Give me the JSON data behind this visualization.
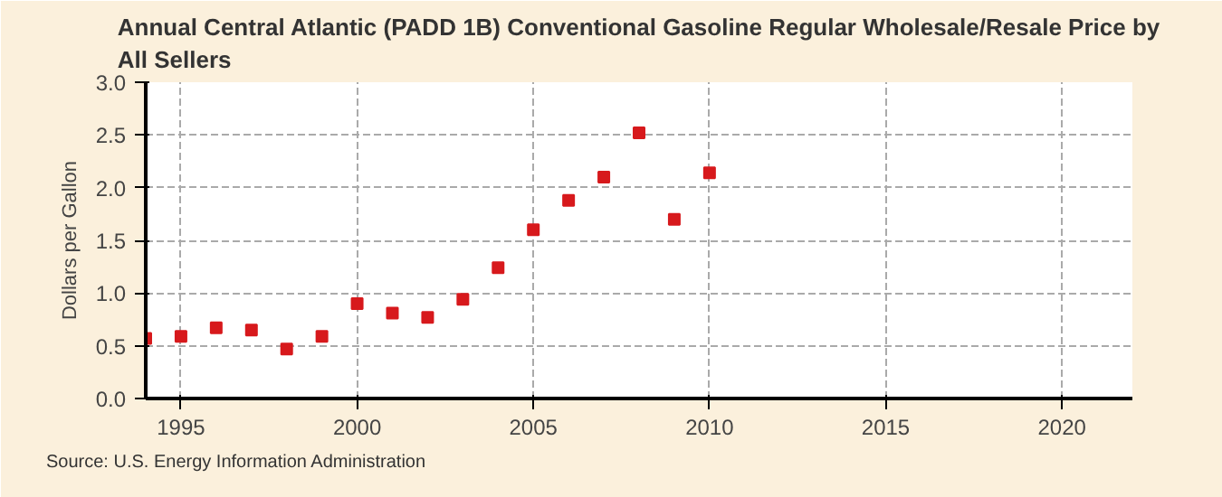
{
  "chart_data": {
    "type": "scatter",
    "title": "Annual Central Atlantic (PADD 1B) Conventional Gasoline Regular Wholesale/Resale Price by\nAll Sellers",
    "ylabel": "Dollars per Gallon",
    "x": [
      1994,
      1995,
      1996,
      1997,
      1998,
      1999,
      2000,
      2001,
      2002,
      2003,
      2004,
      2005,
      2006,
      2007,
      2008,
      2009,
      2010
    ],
    "series": [
      {
        "color": "#d7191c",
        "values": [
          0.57,
          0.59,
          0.67,
          0.65,
          0.47,
          0.59,
          0.9,
          0.81,
          0.77,
          0.94,
          1.24,
          1.6,
          1.88,
          2.1,
          2.52,
          1.7,
          2.14
        ]
      }
    ],
    "xlim": [
      1994,
      2022
    ],
    "xticks": [
      1995,
      2000,
      2005,
      2010,
      2015,
      2020
    ],
    "ylim": [
      0,
      3
    ],
    "yticks": [
      {
        "value": 0,
        "label": "0.0"
      },
      {
        "value": 0.5,
        "label": "0.5"
      },
      {
        "value": 1,
        "label": "1.0"
      },
      {
        "value": 1.5,
        "label": "1.5"
      },
      {
        "value": 2,
        "label": "2.0"
      },
      {
        "value": 2.5,
        "label": "2.5"
      },
      {
        "value": 3,
        "label": "3.0"
      }
    ],
    "grid": true,
    "marker": "square",
    "annotations": [
      "Source: U.S. Energy Information Administration"
    ]
  }
}
